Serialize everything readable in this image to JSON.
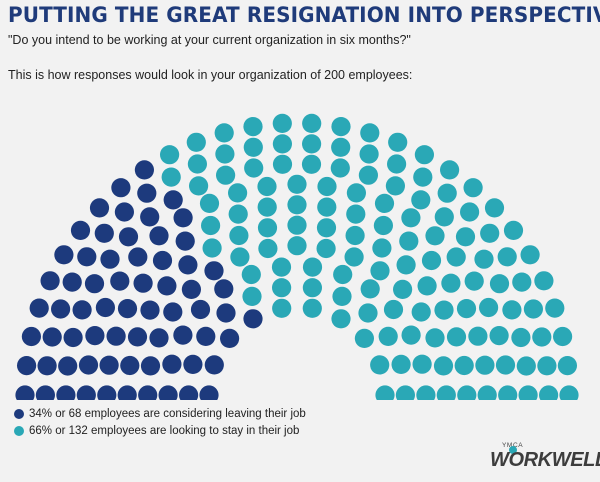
{
  "header": {
    "title": "PUTTING THE GREAT RESIGNATION INTO PERSPECTIVE",
    "subtitle": "\"Do you intend to be working at your current organization in six months?\"",
    "intro": "This is how responses would look in your organization of 200 employees:"
  },
  "chart_data": {
    "type": "parliament",
    "total": 200,
    "series": [
      {
        "name": "34% or 68 employees are considering leaving their job",
        "count": 68,
        "percent": 34,
        "color": "#1d3a7d"
      },
      {
        "name": "66% or 132 employees are looking to stay in their job",
        "count": 132,
        "percent": 66,
        "color": "#2aa8b6"
      }
    ]
  },
  "logo": {
    "small_text": "YMCA",
    "main_text": "WORKWELL"
  },
  "colors": {
    "title": "#1f3b7a",
    "leave": "#1d3a7d",
    "stay": "#2aa8b6",
    "background": "#f2f2f2"
  }
}
